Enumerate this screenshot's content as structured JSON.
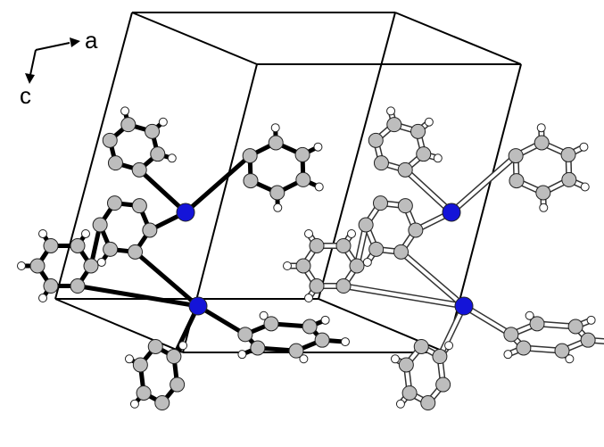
{
  "axes": {
    "a": "a",
    "c": "c"
  }
}
